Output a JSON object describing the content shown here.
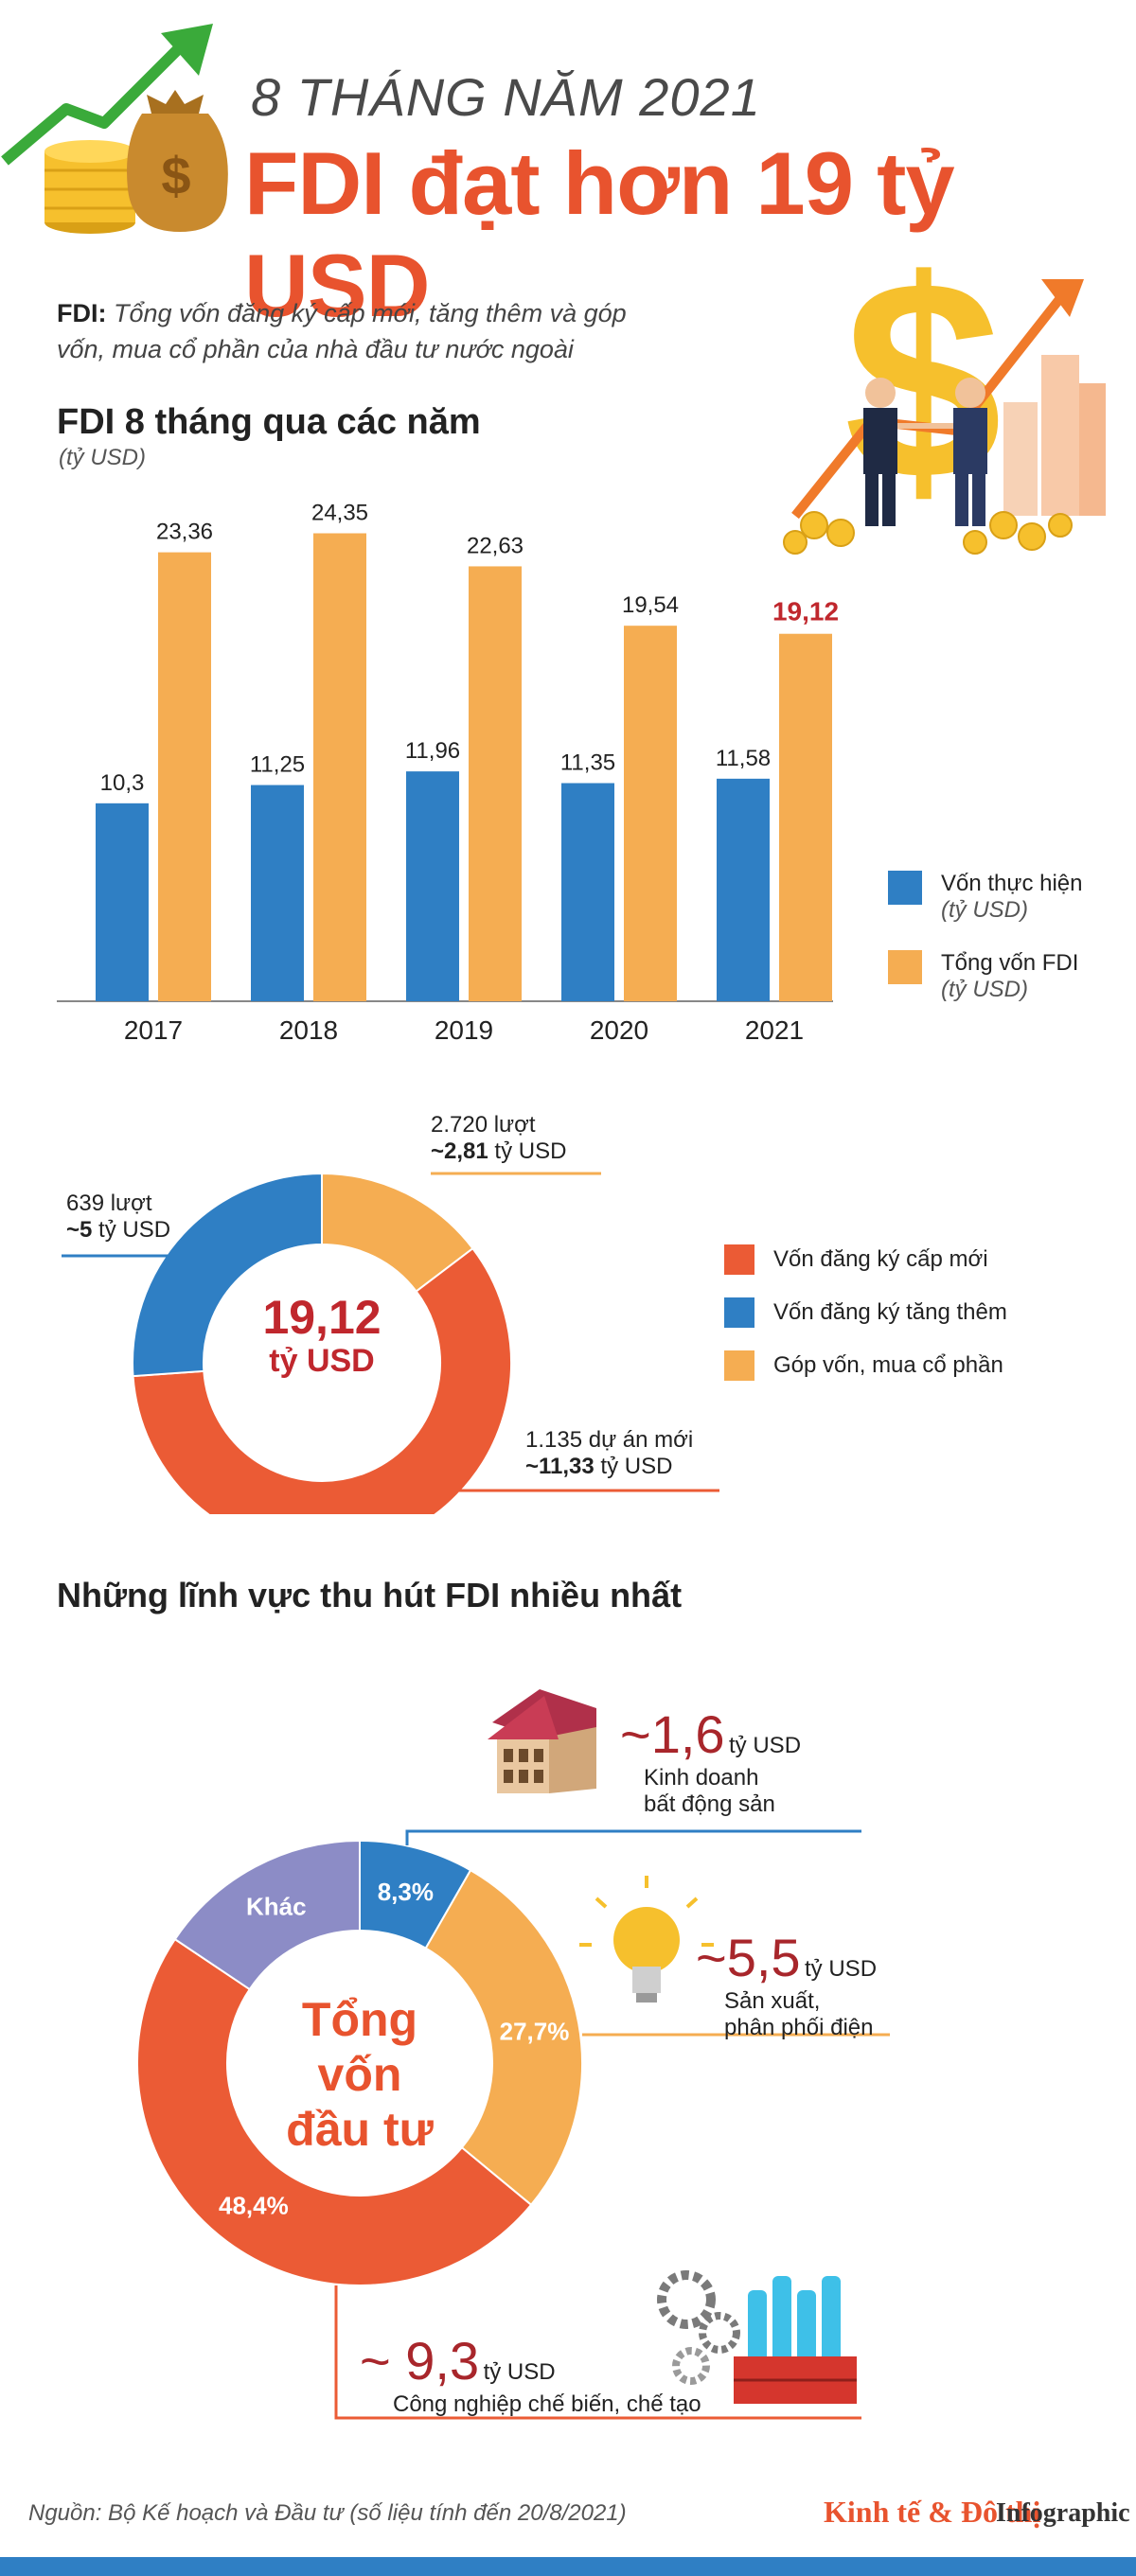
{
  "header": {
    "kicker": "8 THÁNG NĂM 2021",
    "title": "FDI đạt hơn 19 tỷ USD",
    "definition_term": "FDI:",
    "definition_text": "Tổng vốn đăng ký cấp mới, tăng thêm và góp vốn, mua cổ phần của nhà đầu tư nước ngoài"
  },
  "bar_section": {
    "title": "FDI 8 tháng qua các năm",
    "unit": "(tỷ USD)"
  },
  "chart_data": [
    {
      "type": "bar",
      "categories": [
        "2017",
        "2018",
        "2019",
        "2020",
        "2021"
      ],
      "series": [
        {
          "name": "Vốn thực hiện",
          "values": [
            10.3,
            11.25,
            11.96,
            11.35,
            11.58
          ],
          "labels": [
            "10,3",
            "11,25",
            "11,96",
            "11,35",
            "11,58"
          ],
          "color": "#2f7fc4"
        },
        {
          "name": "Tổng vốn FDI",
          "values": [
            23.36,
            24.35,
            22.63,
            19.54,
            19.12
          ],
          "labels": [
            "23,36",
            "24,35",
            "22,63",
            "19,54",
            "19,12"
          ],
          "color": "#f5ad52"
        }
      ],
      "legend": [
        {
          "name": "Vốn thực hiện",
          "unit": "(tỷ USD)",
          "color": "#2f7fc4"
        },
        {
          "name": "Tổng vốn FDI",
          "unit": "(tỷ USD)",
          "color": "#f5ad52"
        }
      ],
      "highlight_color": "#c0272d",
      "ylim": [
        0,
        26
      ],
      "legend_position": "right"
    },
    {
      "type": "pie",
      "center_value": "19,12",
      "center_unit": "tỷ USD",
      "slices": [
        {
          "name": "Góp vốn, mua cổ phần",
          "value": 2.81,
          "color": "#f5ad52",
          "count": "2.720 lượt",
          "amount_prefix": "~",
          "amount": "2,81",
          "unit": "tỷ USD"
        },
        {
          "name": "Vốn đăng ký cấp mới",
          "value": 11.33,
          "color": "#eb5b35",
          "count": "1.135 dự án mới",
          "amount_prefix": "~",
          "amount": "11,33",
          "unit": "tỷ USD"
        },
        {
          "name": "Vốn đăng ký tăng thêm",
          "value": 5,
          "color": "#2f7fc4",
          "count": "639 lượt",
          "amount_prefix": "~",
          "amount": "5",
          "unit": "tỷ USD"
        }
      ],
      "legend": [
        {
          "name": "Vốn đăng ký cấp mới",
          "color": "#eb5b35"
        },
        {
          "name": "Vốn đăng ký tăng thêm",
          "color": "#2f7fc4"
        },
        {
          "name": "Góp vốn, mua cổ phần",
          "color": "#f5ad52"
        }
      ]
    },
    {
      "type": "pie",
      "title": "Những lĩnh vực thu hút FDI nhiều nhất",
      "center_text": [
        "Tổng",
        "vốn",
        "đầu tư"
      ],
      "slices": [
        {
          "name": "Kinh doanh bất động sản",
          "value": 8.3,
          "label": "8,3%",
          "color": "#2f7fc4"
        },
        {
          "name": "Sản xuất, phân phối điện",
          "value": 27.7,
          "label": "27,7%",
          "color": "#f5ad52"
        },
        {
          "name": "Công nghiệp chế biến, chế tạo",
          "value": 48.4,
          "label": "48,4%",
          "color": "#eb5b35"
        },
        {
          "name": "Khác",
          "value": 15.6,
          "label": "Khác",
          "color": "#8c8cc6"
        }
      ],
      "callouts": [
        {
          "amount": "~1,6",
          "unit": "tỷ USD",
          "line1": "Kinh doanh",
          "line2": "bất động sản"
        },
        {
          "amount": "~5,5",
          "unit": "tỷ USD",
          "line1": "Sản xuất,",
          "line2": "phân phối điện"
        },
        {
          "amount": "~ 9,3",
          "unit": "tỷ USD",
          "line1": "Công nghiệp chế biến, chế tạo",
          "line2": ""
        }
      ]
    }
  ],
  "footer": {
    "source": "Nguồn: Bộ Kế hoạch và Đầu tư (số liệu tính đến 20/8/2021)",
    "brand": "Kinh tế & Đô thị",
    "brand_suffix": "Infographic"
  },
  "colors": {
    "accent": "#e8532e",
    "blue": "#2f7fc4",
    "orange": "#f5ad52",
    "red": "#c0272d",
    "gold": "#f6c02d"
  },
  "icons": [
    "up-arrow-icon",
    "money-bag-icon",
    "coins-icon",
    "dollar-sign-icon",
    "businessmen-icon",
    "house-icon",
    "light-bulb-icon",
    "factory-icon",
    "gears-icon"
  ]
}
